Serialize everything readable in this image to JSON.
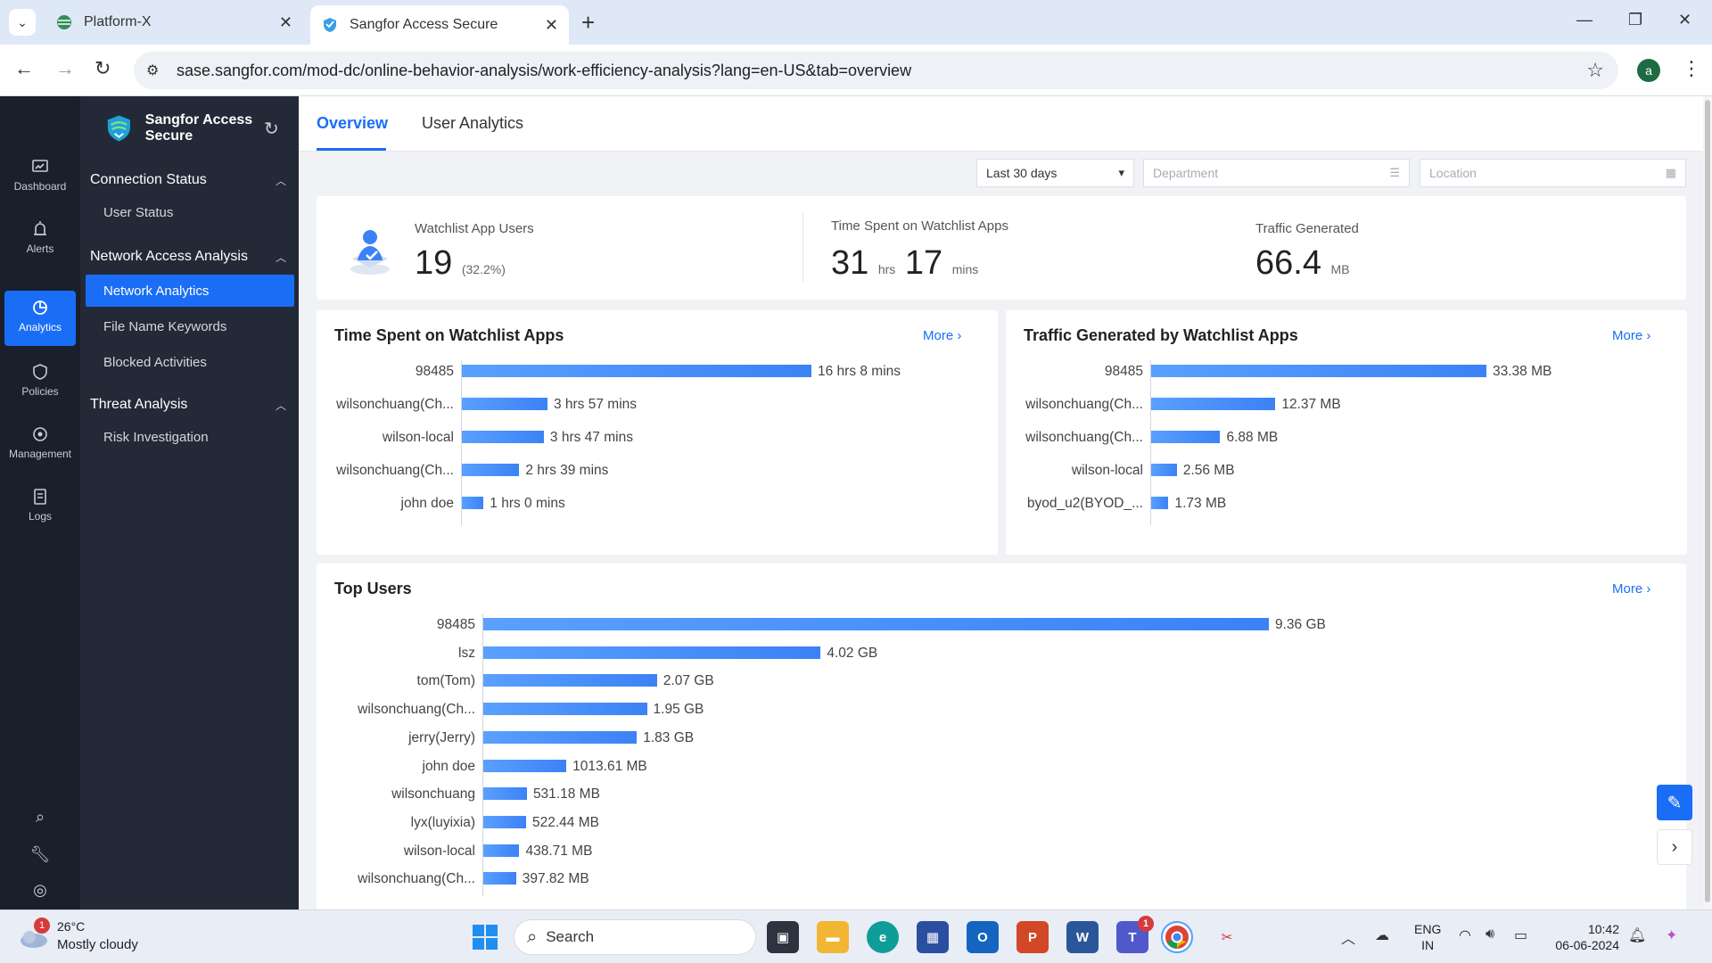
{
  "browser": {
    "tabs": [
      {
        "title": "Platform-X",
        "active": false
      },
      {
        "title": "Sangfor Access Secure",
        "active": true
      }
    ],
    "url": "sase.sangfor.com/mod-dc/online-behavior-analysis/work-efficiency-analysis?lang=en-US&tab=overview",
    "profile_initial": "a"
  },
  "rail": {
    "items": [
      {
        "label": "Dashboard",
        "icon": "dashboard-icon"
      },
      {
        "label": "Alerts",
        "icon": "alert-icon"
      },
      {
        "label": "Analytics",
        "icon": "analytics-icon",
        "active": true
      },
      {
        "label": "Policies",
        "icon": "shield-icon"
      },
      {
        "label": "Management",
        "icon": "management-icon"
      },
      {
        "label": "Logs",
        "icon": "logs-icon"
      }
    ]
  },
  "nav": {
    "brand": "Sangfor Access Secure",
    "groups": [
      {
        "label": "Connection Status",
        "items": [
          "User Status"
        ]
      },
      {
        "label": "Network Access Analysis",
        "items": [
          "Network Analytics",
          "File Name Keywords",
          "Blocked Activities"
        ]
      },
      {
        "label": "Threat Analysis",
        "items": [
          "Risk Investigation"
        ]
      }
    ],
    "active_item": "Network Analytics"
  },
  "tabs": {
    "overview": "Overview",
    "user_analytics": "User Analytics"
  },
  "filters": {
    "period": "Last 30 days",
    "department_placeholder": "Department",
    "location_placeholder": "Location"
  },
  "stats": {
    "watchlist_users": {
      "label": "Watchlist App Users",
      "value": "19",
      "pct": "(32.2%)"
    },
    "time_spent": {
      "label": "Time Spent on Watchlist Apps",
      "hrs": "31",
      "hrs_unit": "hrs",
      "mins": "17",
      "mins_unit": "mins"
    },
    "traffic": {
      "label": "Traffic Generated",
      "value": "66.4",
      "unit": "MB"
    }
  },
  "more_label": "More",
  "charts": {
    "time_spent": {
      "title": "Time Spent on Watchlist Apps",
      "rows": [
        {
          "name": "98485",
          "label": "16 hrs 8 mins",
          "value": 968
        },
        {
          "name": "wilsonchuang(Ch...",
          "label": "3 hrs 57 mins",
          "value": 237
        },
        {
          "name": "wilson-local",
          "label": "3 hrs 47 mins",
          "value": 227
        },
        {
          "name": "wilsonchuang(Ch...",
          "label": "2 hrs 39 mins",
          "value": 159
        },
        {
          "name": "john doe",
          "label": "1 hrs 0 mins",
          "value": 60
        }
      ]
    },
    "traffic": {
      "title": "Traffic Generated by Watchlist Apps",
      "rows": [
        {
          "name": "98485",
          "label": "33.38 MB",
          "value": 33.38
        },
        {
          "name": "wilsonchuang(Ch...",
          "label": "12.37 MB",
          "value": 12.37
        },
        {
          "name": "wilsonchuang(Ch...",
          "label": "6.88 MB",
          "value": 6.88
        },
        {
          "name": "wilson-local",
          "label": "2.56 MB",
          "value": 2.56
        },
        {
          "name": "byod_u2(BYOD_...",
          "label": "1.73 MB",
          "value": 1.73
        }
      ]
    },
    "top_users": {
      "title": "Top Users",
      "rows": [
        {
          "name": "98485",
          "label": "9.36 GB",
          "value": 9.36
        },
        {
          "name": "lsz",
          "label": "4.02 GB",
          "value": 4.02
        },
        {
          "name": "tom(Tom)",
          "label": "2.07 GB",
          "value": 2.07
        },
        {
          "name": "wilsonchuang(Ch...",
          "label": "1.95 GB",
          "value": 1.95
        },
        {
          "name": "jerry(Jerry)",
          "label": "1.83 GB",
          "value": 1.83
        },
        {
          "name": "john doe",
          "label": "1013.61 MB",
          "value": 0.99
        },
        {
          "name": "wilsonchuang",
          "label": "531.18 MB",
          "value": 0.52
        },
        {
          "name": "lyx(luyixia)",
          "label": "522.44 MB",
          "value": 0.51
        },
        {
          "name": "wilson-local",
          "label": "438.71 MB",
          "value": 0.43
        },
        {
          "name": "wilsonchuang(Ch...",
          "label": "397.82 MB",
          "value": 0.39
        }
      ]
    }
  },
  "taskbar": {
    "weather_badge": "1",
    "temperature": "26°C",
    "condition": "Mostly cloudy",
    "search_label": "Search",
    "lang_top": "ENG",
    "lang_bottom": "IN",
    "time": "10:42",
    "date": "06-06-2024",
    "teams_badge": "1"
  },
  "colors": {
    "accent": "#1a6ef5",
    "sidebar": "#1b1f2b",
    "subnav": "#242938"
  }
}
